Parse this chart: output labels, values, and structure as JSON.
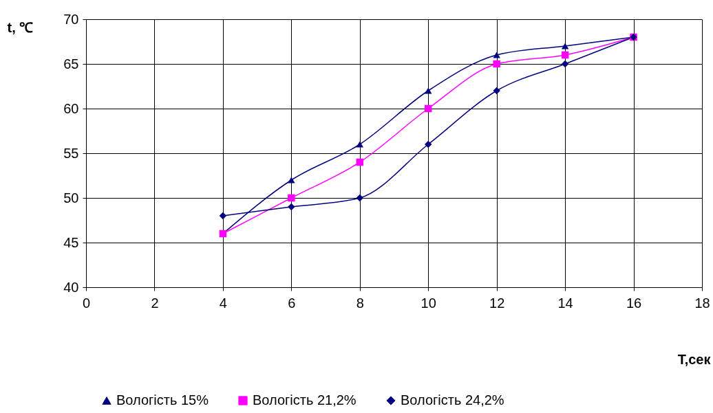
{
  "chart_data": {
    "type": "line",
    "xlabel": "T,сек",
    "ylabel": "t, ℃",
    "x": [
      4,
      6,
      8,
      10,
      12,
      14,
      16
    ],
    "series": [
      {
        "name": "Вологість 15%",
        "color": "#000080",
        "marker": "triangle",
        "values": [
          46,
          52,
          56,
          62,
          66,
          67,
          68
        ]
      },
      {
        "name": "Вологість 21,2%",
        "color": "#ff00ff",
        "marker": "square",
        "values": [
          46,
          50,
          54,
          60,
          65,
          66,
          68
        ]
      },
      {
        "name": "Вологість 24,2%",
        "color": "#000080",
        "marker": "diamond",
        "values": [
          48,
          49,
          50,
          56,
          62,
          65,
          68
        ]
      }
    ],
    "xlim": [
      0,
      18
    ],
    "xticks": [
      0,
      2,
      4,
      6,
      8,
      10,
      12,
      14,
      16,
      18
    ],
    "ylim": [
      40,
      70
    ],
    "yticks": [
      40,
      45,
      50,
      55,
      60,
      65,
      70
    ],
    "grid": true,
    "legend": "bottom"
  }
}
